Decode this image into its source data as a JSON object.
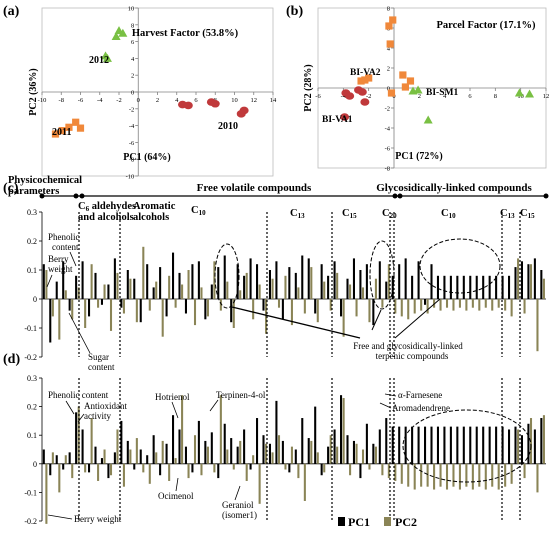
{
  "figure": {
    "panel_labels": [
      "(a)",
      "(b)",
      "(c)",
      "(d)"
    ],
    "legend": [
      {
        "name": "PC1",
        "color": "#000000"
      },
      {
        "name": "PC2",
        "color": "#8a8456"
      }
    ]
  },
  "chart_data": [
    {
      "type": "scatter",
      "panel": "(a)",
      "title": "Harvest Factor (53.8%)",
      "xlabel": "PC1 (64%)",
      "ylabel": "PC2 (36%)",
      "xlim": [
        -10,
        14
      ],
      "ylim": [
        -10,
        10
      ],
      "xticks": [
        -10,
        -8,
        -6,
        -4,
        -2,
        0,
        2,
        4,
        6,
        8,
        10,
        12,
        14
      ],
      "yticks": [
        -10,
        -8,
        -6,
        -4,
        -2,
        0,
        2,
        4,
        6,
        8,
        10
      ],
      "series": [
        {
          "name": "2012",
          "marker": "triangle",
          "color": "#79c043",
          "points": [
            [
              -2.3,
              6.6
            ],
            [
              -1.6,
              7.0
            ],
            [
              -2.0,
              7.3
            ],
            [
              -3.2,
              4.0
            ],
            [
              -3.4,
              4.3
            ]
          ]
        },
        {
          "name": "2011",
          "marker": "square",
          "color": "#f0883a",
          "points": [
            [
              -8.6,
              -5.0
            ],
            [
              -7.9,
              -4.6
            ],
            [
              -6.5,
              -3.6
            ],
            [
              -6.0,
              -4.3
            ],
            [
              -7.2,
              -4.2
            ]
          ]
        },
        {
          "name": "2010",
          "marker": "circle",
          "color": "#c0393b",
          "points": [
            [
              4.6,
              -1.5
            ],
            [
              5.2,
              -1.6
            ],
            [
              7.6,
              -1.2
            ],
            [
              8.0,
              -1.4
            ],
            [
              11.0,
              -2.2
            ],
            [
              10.7,
              -2.6
            ]
          ]
        }
      ],
      "annotations": [
        "2012",
        "2011",
        "2010"
      ]
    },
    {
      "type": "scatter",
      "panel": "(b)",
      "title": "Parcel Factor (17.1%)",
      "xlabel": "PC1 (72%)",
      "ylabel": "PC2 (28%)",
      "xlim": [
        -6,
        12
      ],
      "ylim": [
        -8,
        8
      ],
      "xticks": [
        -6,
        -4,
        -2,
        0,
        2,
        4,
        6,
        8,
        10,
        12
      ],
      "yticks": [
        -8,
        -6,
        -4,
        -2,
        0,
        2,
        4,
        6,
        8
      ],
      "series": [
        {
          "name": "BI-VA2",
          "marker": "square",
          "color": "#f0883a",
          "points": [
            [
              -0.4,
              6.2
            ],
            [
              -0.1,
              6.8
            ],
            [
              -0.3,
              4.4
            ],
            [
              -2.3,
              0.8
            ],
            [
              -2.0,
              1.0
            ],
            [
              -2.6,
              0.7
            ],
            [
              0.7,
              1.3
            ],
            [
              1.3,
              0.7
            ],
            [
              0.9,
              0.1
            ],
            [
              -0.2,
              -0.5
            ]
          ]
        },
        {
          "name": "BI-VA1",
          "marker": "circle",
          "color": "#c0393b",
          "points": [
            [
              -3.8,
              -0.5
            ],
            [
              -3.5,
              -0.8
            ],
            [
              -2.8,
              -0.2
            ],
            [
              -2.5,
              -0.4
            ],
            [
              -3.9,
              -2.9
            ],
            [
              -2.3,
              -1.4
            ]
          ]
        },
        {
          "name": "BI-SM1",
          "marker": "triangle",
          "color": "#79c043",
          "points": [
            [
              1.5,
              -0.3
            ],
            [
              1.9,
              -0.2
            ],
            [
              9.9,
              -0.5
            ],
            [
              10.7,
              -0.6
            ],
            [
              2.7,
              -3.2
            ]
          ]
        }
      ],
      "annotations": [
        "BI-VA2",
        "BI-VA1",
        "BI-SM1"
      ]
    },
    {
      "type": "bar",
      "panel": "(c)",
      "ylim": [
        -0.2,
        0.3
      ],
      "yticks": [
        -0.2,
        -0.1,
        0,
        0.1,
        0.2,
        0.3
      ],
      "category_groups": [
        "Physicochemical parameters",
        "C6 aldehydes and alcohols",
        "Aromatic alcohols",
        "Free volatile compounds",
        "C10",
        "C13",
        "C15",
        "C20",
        "Glycosidically-linked compounds",
        "C10",
        "C13",
        "C15"
      ],
      "series": [
        {
          "name": "PC1",
          "values": [
            0.12,
            -0.15,
            0.06,
            0.13,
            -0.04,
            0.08,
            0.13,
            -0.06,
            0.09,
            -0.02,
            0.05,
            0.14,
            -0.03,
            0.1,
            0.07,
            -0.08,
            0.12,
            0.04,
            0.11,
            -0.06,
            0.16,
            0.09,
            -0.05,
            0.12,
            0.13,
            -0.07,
            0.05,
            0.11,
            0.15,
            -0.08,
            0.12,
            0.08,
            0.14,
            0.12,
            -0.04,
            0.1,
            0.13,
            -0.07,
            0.11,
            0.09,
            0.15,
            0.14,
            -0.05,
            0.12,
            0.08,
            0.13,
            -0.06,
            0.07,
            0.14,
            0.1,
            0.12,
            -0.09,
            0.13,
            0.06,
            0.08,
            0.12,
            0.14,
            0.08,
            0.13,
            -0.02,
            0.12,
            0.08,
            0.08,
            0.08,
            0.08,
            0.08,
            0.08,
            0.08,
            0.08,
            0.08,
            0.08,
            0.08,
            0.08,
            0.11,
            0.13,
            0.12,
            0.14,
            0.1
          ]
        },
        {
          "name": "PC2",
          "values": [
            0.1,
            -0.06,
            -0.14,
            0.03,
            -0.07,
            0.04,
            -0.1,
            0.12,
            -0.03,
            0.05,
            -0.11,
            0.09,
            -0.05,
            0.07,
            -0.08,
            0.18,
            -0.04,
            0.06,
            -0.13,
            0.08,
            -0.03,
            0.05,
            0.1,
            -0.09,
            0.04,
            -0.06,
            0.13,
            -0.04,
            0.06,
            -0.1,
            0.03,
            0.09,
            -0.07,
            0.05,
            -0.12,
            0.07,
            -0.03,
            0.08,
            -0.09,
            0.04,
            -0.05,
            0.11,
            -0.08,
            0.06,
            -0.04,
            0.09,
            -0.13,
            0.05,
            -0.06,
            0.04,
            -0.08,
            0.07,
            -0.03,
            0.12,
            -0.05,
            -0.06,
            -0.07,
            -0.05,
            -0.04,
            -0.05,
            -0.03,
            -0.04,
            -0.03,
            -0.04,
            -0.03,
            -0.04,
            -0.03,
            -0.04,
            -0.03,
            -0.04,
            -0.03,
            -0.04,
            -0.06,
            0.14,
            -0.05,
            0.12,
            -0.18,
            0.07
          ]
        }
      ],
      "annotations": [
        "Phenolic content",
        "Berry weight",
        "Sugar content",
        "Free and glycosidically-linked terpenic compounds"
      ]
    },
    {
      "type": "bar",
      "panel": "(d)",
      "ylim": [
        -0.2,
        0.3
      ],
      "yticks": [
        -0.2,
        -0.1,
        0,
        0.1,
        0.2,
        0.3
      ],
      "series": [
        {
          "name": "PC1",
          "values": [
            0.05,
            -0.04,
            0.03,
            -0.02,
            0.04,
            0.18,
            0.12,
            -0.03,
            0.06,
            0.02,
            -0.05,
            0.04,
            0.15,
            0.08,
            -0.02,
            0.05,
            0.03,
            0.1,
            -0.04,
            0.07,
            0.17,
            0.12,
            0.06,
            -0.03,
            0.15,
            0.08,
            0.11,
            -0.05,
            0.14,
            0.09,
            0.06,
            0.12,
            -0.02,
            0.16,
            0.1,
            0.07,
            0.22,
            0.08,
            -0.03,
            0.05,
            0.16,
            0.09,
            0.2,
            -0.04,
            0.06,
            0.12,
            0.24,
            0.1,
            0.08,
            -0.05,
            0.14,
            0.07,
            0.12,
            0.16,
            0.13,
            0.13,
            0.13,
            0.13,
            0.13,
            0.13,
            0.13,
            0.13,
            0.13,
            0.13,
            0.13,
            0.13,
            0.13,
            0.13,
            0.13,
            0.13,
            0.13,
            0.13,
            0.12,
            0.13,
            0.1,
            0.14,
            0.12,
            0.16
          ]
        },
        {
          "name": "PC2",
          "values": [
            -0.21,
            0.04,
            -0.1,
            0.03,
            -0.05,
            0.2,
            -0.03,
            0.16,
            -0.06,
            0.05,
            -0.04,
            0.12,
            -0.08,
            0.05,
            0.09,
            -0.03,
            -0.07,
            0.04,
            0.08,
            -0.06,
            0.02,
            0.24,
            -0.05,
            0.1,
            -0.04,
            0.06,
            -0.03,
            0.24,
            0.05,
            -0.02,
            0.08,
            -0.06,
            0.03,
            -0.14,
            0.07,
            0.04,
            0.1,
            -0.02,
            0.06,
            -0.05,
            -0.13,
            0.08,
            0.04,
            -0.03,
            0.1,
            0.06,
            0.23,
            -0.04,
            0.07,
            0.05,
            -0.02,
            0.06,
            -0.04,
            -0.05,
            -0.06,
            -0.07,
            -0.08,
            -0.09,
            -0.08,
            -0.08,
            -0.09,
            -0.08,
            -0.09,
            -0.08,
            -0.09,
            -0.08,
            -0.09,
            -0.08,
            -0.09,
            -0.08,
            -0.09,
            -0.08,
            -0.07,
            0.12,
            -0.05,
            0.16,
            -0.1,
            0.17
          ]
        }
      ],
      "annotations": [
        "Phenolic content",
        "Antioxidant activity",
        "Hotrienol",
        "Terpinen-4-ol",
        "α-Farnesene",
        "Aromadendrene",
        "Ocimenol",
        "Geraniol (isomer1)",
        "Berry weight"
      ]
    }
  ],
  "text": {
    "title_a": "Harvest Factor (53.8%)",
    "title_b": "Parcel Factor (17.1%)",
    "xlabel_a": "PC1 (64%)",
    "ylabel_a": "PC2 (36%)",
    "xlabel_b": "PC1 (72%)",
    "ylabel_b": "PC2 (28%)",
    "lab_2012": "2012",
    "lab_2011": "2011",
    "lab_2010": "2010",
    "lab_biva2": "BI-VA2",
    "lab_biva1": "BI-VA1",
    "lab_bism1": "BI-SM1",
    "cat_physico_1": "Physicochemical",
    "cat_physico_2": "parameters",
    "cat_c6_1": "C",
    "cat_c6_sub": "6",
    "cat_c6_2": " aldehydes",
    "cat_c6_3": "and alcohols",
    "cat_arom_1": "Aromatic",
    "cat_arom_2": "alcohols",
    "cat_free": "Free volatile compounds",
    "cat_glyco": "Glycosidically-linked compounds",
    "c_c10a": "C",
    "c_c10a_sub": "10",
    "c_c13a": "C",
    "c_c13a_sub": "13",
    "c_c15a": "C",
    "c_c15a_sub": "15",
    "c_c20": "C",
    "c_c20_sub": "20",
    "c_c10b": "C",
    "c_c10b_sub": "10",
    "c_c13b": "C",
    "c_c13b_sub": "13",
    "c_c15b": "C",
    "c_c15b_sub": "15",
    "ann_phenolic_c_1": "Phenolic",
    "ann_phenolic_c_2": "content",
    "ann_berry_c_1": "Berry",
    "ann_berry_c_2": "weight",
    "ann_sugar_1": "Sugar",
    "ann_sugar_2": "content",
    "ann_terp_1": "Free and glycosidically-linked",
    "ann_terp_2": "terpenic compounds",
    "ann_phenolic_d": "Phenolic content",
    "ann_antiox_1": "Antioxidant",
    "ann_antiox_2": "activity",
    "ann_hotrienol": "Hotrienol",
    "ann_terpinen": "Terpinen-4-ol",
    "ann_farnesene": "α-Farnesene",
    "ann_aromad": "Aromadendrene",
    "ann_ocimenol": "Ocimenol",
    "ann_geraniol_1": "Geraniol",
    "ann_geraniol_2": "(isomer1)",
    "ann_berry_d": "Berry weight"
  }
}
